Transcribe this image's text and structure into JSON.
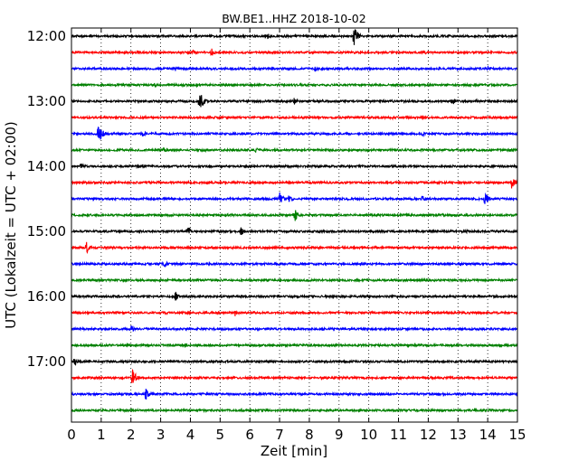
{
  "chart_data": {
    "type": "line",
    "title": "BW.BE1..HHZ 2018-10-02",
    "xlabel": "Zeit  [min]",
    "ylabel": "UTC (Lokalzeit = UTC + 02:00)",
    "xlim": [
      0,
      15
    ],
    "x_ticks": [
      "0",
      "1",
      "2",
      "3",
      "4",
      "5",
      "6",
      "7",
      "8",
      "9",
      "10",
      "11",
      "12",
      "13",
      "14",
      "15"
    ],
    "y_tick_labels": [
      "12:00",
      "13:00",
      "14:00",
      "15:00",
      "16:00",
      "17:00"
    ],
    "grid": "vertical dotted at each minute",
    "trace_interval_minutes": 15,
    "colors": [
      "#000000",
      "#ff0000",
      "#0000ff",
      "#008000"
    ],
    "traces": [
      {
        "start": "12:00",
        "events": [
          {
            "t": 6.6,
            "amp": 3
          },
          {
            "t": 9.5,
            "amp": 13
          },
          {
            "t": 2.0,
            "amp": 2
          }
        ]
      },
      {
        "start": "12:15",
        "events": [
          {
            "t": 4.7,
            "amp": 5
          },
          {
            "t": 4.1,
            "amp": 3
          },
          {
            "t": 2.2,
            "amp": 2
          },
          {
            "t": 11.9,
            "amp": 3
          }
        ]
      },
      {
        "start": "12:30",
        "events": [
          {
            "t": 3.5,
            "amp": 3
          },
          {
            "t": 8.2,
            "amp": 4
          },
          {
            "t": 14.0,
            "amp": 3
          },
          {
            "t": 5.3,
            "amp": 2
          }
        ]
      },
      {
        "start": "12:45",
        "events": [
          {
            "t": 2.8,
            "amp": 3
          },
          {
            "t": 4.2,
            "amp": 2
          },
          {
            "t": 12.6,
            "amp": 2
          }
        ]
      },
      {
        "start": "13:00",
        "events": [
          {
            "t": 4.3,
            "amp": 13
          },
          {
            "t": 7.5,
            "amp": 5
          },
          {
            "t": 12.8,
            "amp": 4
          },
          {
            "t": 10.4,
            "amp": 2
          },
          {
            "t": 13.6,
            "amp": 3
          }
        ]
      },
      {
        "start": "13:15",
        "events": [
          {
            "t": 10.8,
            "amp": 2
          },
          {
            "t": 2.5,
            "amp": 2
          }
        ]
      },
      {
        "start": "13:30",
        "events": [
          {
            "t": 0.9,
            "amp": 14
          },
          {
            "t": 2.4,
            "amp": 4
          },
          {
            "t": 11.8,
            "amp": 3
          }
        ]
      },
      {
        "start": "13:45",
        "events": [
          {
            "t": 3.1,
            "amp": 4
          },
          {
            "t": 6.2,
            "amp": 3
          },
          {
            "t": 14.8,
            "amp": 2
          }
        ]
      },
      {
        "start": "14:00",
        "events": [
          {
            "t": 0.3,
            "amp": 5
          },
          {
            "t": 2.4,
            "amp": 3
          },
          {
            "t": 5.2,
            "amp": 2
          }
        ]
      },
      {
        "start": "14:15",
        "events": [
          {
            "t": 14.8,
            "amp": 7
          },
          {
            "t": 5.5,
            "amp": 2
          },
          {
            "t": 9.3,
            "amp": 2
          }
        ]
      },
      {
        "start": "14:30",
        "events": [
          {
            "t": 7.0,
            "amp": 8
          },
          {
            "t": 7.3,
            "amp": 5
          },
          {
            "t": 13.9,
            "amp": 8
          },
          {
            "t": 11.8,
            "amp": 4
          },
          {
            "t": 9.3,
            "amp": 2
          }
        ]
      },
      {
        "start": "14:45",
        "events": [
          {
            "t": 7.5,
            "amp": 8
          },
          {
            "t": 12.5,
            "amp": 3
          },
          {
            "t": 2.2,
            "amp": 2
          }
        ]
      },
      {
        "start": "15:00",
        "events": [
          {
            "t": 3.9,
            "amp": 6
          },
          {
            "t": 5.7,
            "amp": 5
          },
          {
            "t": 13.3,
            "amp": 2
          }
        ]
      },
      {
        "start": "15:15",
        "events": [
          {
            "t": 0.5,
            "amp": 7
          },
          {
            "t": 6.4,
            "amp": 2
          }
        ]
      },
      {
        "start": "15:30",
        "events": [
          {
            "t": 3.1,
            "amp": 5
          },
          {
            "t": 7.0,
            "amp": 2
          }
        ]
      },
      {
        "start": "15:45",
        "events": [
          {
            "t": 1.8,
            "amp": 2
          },
          {
            "t": 9.6,
            "amp": 2
          }
        ]
      },
      {
        "start": "16:00",
        "events": [
          {
            "t": 3.5,
            "amp": 6
          },
          {
            "t": 1.5,
            "amp": 3
          },
          {
            "t": 5.7,
            "amp": 2
          }
        ]
      },
      {
        "start": "16:15",
        "events": [
          {
            "t": 5.5,
            "amp": 4
          },
          {
            "t": 3.2,
            "amp": 2
          }
        ]
      },
      {
        "start": "16:30",
        "events": [
          {
            "t": 2.0,
            "amp": 5
          },
          {
            "t": 12.0,
            "amp": 2
          }
        ]
      },
      {
        "start": "16:45",
        "events": [
          {
            "t": 8.0,
            "amp": 2
          }
        ]
      },
      {
        "start": "17:00",
        "events": [
          {
            "t": 0.1,
            "amp": 5
          },
          {
            "t": 3.0,
            "amp": 2
          }
        ]
      },
      {
        "start": "17:15",
        "events": [
          {
            "t": 2.05,
            "amp": 10
          },
          {
            "t": 1.7,
            "amp": 3
          },
          {
            "t": 9.0,
            "amp": 2
          }
        ]
      },
      {
        "start": "17:30",
        "events": [
          {
            "t": 2.5,
            "amp": 7
          },
          {
            "t": 10.5,
            "amp": 2
          }
        ]
      },
      {
        "start": "17:45",
        "events": [
          {
            "t": 5.0,
            "amp": 2
          }
        ]
      }
    ]
  }
}
